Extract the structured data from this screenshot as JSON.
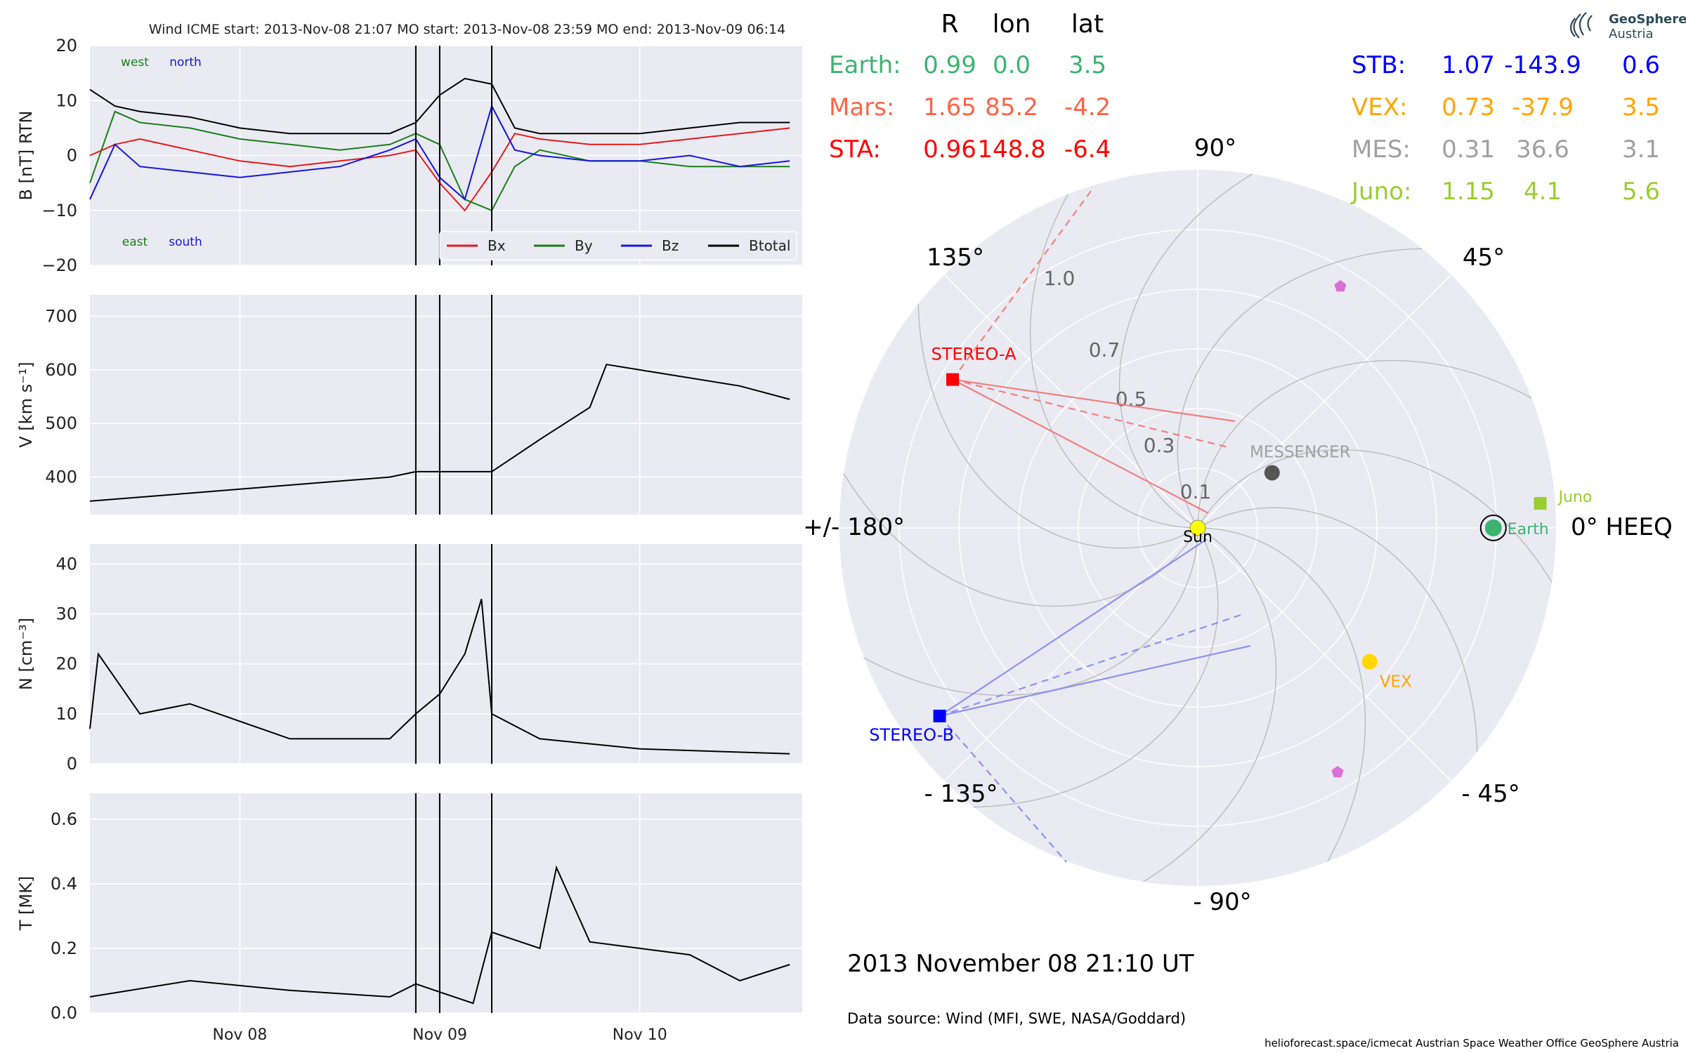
{
  "colors": {
    "panel_bg": "#eaeaf2",
    "grid": "#ffffff",
    "bx": "#e41a1c",
    "by": "#1a7f1a",
    "bz": "#1515e0",
    "btotal": "#000000",
    "earth": "#3cb371",
    "mars": "#ff6347",
    "sta": "#ff0000",
    "stb": "#0000ff",
    "vex": "#ffa500",
    "mes": "#a0a0a0",
    "juno": "#9acd32",
    "sun": "#ffff00",
    "messenger_dot": "#555555",
    "pentagon": "#da70d6"
  },
  "timeseries": {
    "header": "Wind    ICME start: 2013-Nov-08 21:07   MO start: 2013-Nov-08 23:59   MO end: 2013-Nov-09 06:14",
    "x_ticks": [
      "Nov 08",
      "Nov 09",
      "Nov 10"
    ],
    "markers": [
      "2013-Nov-08 21:07",
      "2013-Nov-08 23:59",
      "2013-Nov-09 06:14"
    ]
  },
  "chart_data": [
    {
      "type": "line",
      "ylabel": "B [nT] RTN",
      "ylim": [
        -20,
        20
      ],
      "y_ticks": [
        "20",
        "10",
        "0",
        "−10",
        "−20"
      ],
      "corner_labels": {
        "west": "west",
        "north": "north",
        "east": "east",
        "south": "south"
      },
      "legend": [
        "Bx",
        "By",
        "Bz",
        "Btotal"
      ],
      "x": [
        "2013-11-07 06:00",
        "2013-11-07 09:00",
        "2013-11-07 12:00",
        "2013-11-07 18:00",
        "2013-11-08 00:00",
        "2013-11-08 06:00",
        "2013-11-08 12:00",
        "2013-11-08 18:00",
        "2013-11-08 21:07",
        "2013-11-08 23:59",
        "2013-11-09 03:00",
        "2013-11-09 06:14",
        "2013-11-09 09:00",
        "2013-11-09 12:00",
        "2013-11-09 18:00",
        "2013-11-10 00:00",
        "2013-11-10 06:00",
        "2013-11-10 12:00",
        "2013-11-10 18:00"
      ],
      "series": [
        {
          "name": "Bx",
          "values": [
            0,
            2,
            3,
            1,
            -1,
            -2,
            -1,
            0,
            1,
            -5,
            -10,
            -3,
            4,
            3,
            2,
            2,
            3,
            4,
            5
          ]
        },
        {
          "name": "By",
          "values": [
            -5,
            8,
            6,
            5,
            3,
            2,
            1,
            2,
            4,
            2,
            -8,
            -10,
            -2,
            1,
            -1,
            -1,
            -2,
            -2,
            -2
          ]
        },
        {
          "name": "Bz",
          "values": [
            -8,
            2,
            -2,
            -3,
            -4,
            -3,
            -2,
            1,
            3,
            -4,
            -8,
            9,
            1,
            0,
            -1,
            -1,
            0,
            -2,
            -1
          ]
        },
        {
          "name": "Btotal",
          "values": [
            12,
            9,
            8,
            7,
            5,
            4,
            4,
            4,
            6,
            11,
            14,
            13,
            5,
            4,
            4,
            4,
            5,
            6,
            6
          ]
        }
      ]
    },
    {
      "type": "line",
      "ylabel": "V [km s⁻¹]",
      "ylim": [
        330,
        740
      ],
      "y_ticks": [
        "700",
        "600",
        "500",
        "400"
      ],
      "x": [
        "2013-11-07 06:00",
        "2013-11-07 18:00",
        "2013-11-08 06:00",
        "2013-11-08 18:00",
        "2013-11-08 21:07",
        "2013-11-09 06:14",
        "2013-11-09 12:00",
        "2013-11-09 18:00",
        "2013-11-09 20:00",
        "2013-11-10 00:00",
        "2013-11-10 12:00",
        "2013-11-10 18:00"
      ],
      "series": [
        {
          "name": "V",
          "values": [
            355,
            370,
            385,
            400,
            410,
            410,
            470,
            530,
            610,
            600,
            570,
            545
          ]
        }
      ]
    },
    {
      "type": "line",
      "ylabel": "N [cm⁻³]",
      "ylim": [
        0,
        44
      ],
      "y_ticks": [
        "40",
        "30",
        "20",
        "10",
        "0"
      ],
      "x": [
        "2013-11-07 06:00",
        "2013-11-07 07:00",
        "2013-11-07 12:00",
        "2013-11-07 18:00",
        "2013-11-08 06:00",
        "2013-11-08 18:00",
        "2013-11-08 21:07",
        "2013-11-09 00:00",
        "2013-11-09 03:00",
        "2013-11-09 05:00",
        "2013-11-09 06:14",
        "2013-11-09 12:00",
        "2013-11-10 00:00",
        "2013-11-10 18:00"
      ],
      "series": [
        {
          "name": "N",
          "values": [
            7,
            22,
            10,
            12,
            5,
            5,
            10,
            14,
            22,
            33,
            10,
            5,
            3,
            2
          ]
        }
      ]
    },
    {
      "type": "line",
      "ylabel": "T [MK]",
      "ylim": [
        0,
        0.68
      ],
      "y_ticks": [
        "0.6",
        "0.4",
        "0.2",
        "0.0"
      ],
      "x": [
        "2013-11-07 06:00",
        "2013-11-07 18:00",
        "2013-11-08 06:00",
        "2013-11-08 18:00",
        "2013-11-08 21:07",
        "2013-11-09 04:00",
        "2013-11-09 06:14",
        "2013-11-09 12:00",
        "2013-11-09 14:00",
        "2013-11-09 18:00",
        "2013-11-10 06:00",
        "2013-11-10 12:00",
        "2013-11-10 18:00"
      ],
      "series": [
        {
          "name": "T",
          "values": [
            0.05,
            0.1,
            0.07,
            0.05,
            0.09,
            0.03,
            0.25,
            0.2,
            0.45,
            0.22,
            0.18,
            0.1,
            0.15
          ]
        }
      ]
    }
  ],
  "positions": {
    "header": {
      "r": "R",
      "lon": "lon",
      "lat": "lat"
    },
    "left": [
      {
        "name": "Earth:",
        "r": "0.99",
        "lon": "0.0",
        "lat": "3.5",
        "color": "#3cb371"
      },
      {
        "name": "Mars:",
        "r": "1.65",
        "lon": "85.2",
        "lat": "-4.2",
        "color": "#ff6347"
      },
      {
        "name": "STA:",
        "r": "0.96",
        "lon": "148.8",
        "lat": "-6.4",
        "color": "#ff0000"
      }
    ],
    "right": [
      {
        "name": "STB:",
        "r": "1.07",
        "lon": "-143.9",
        "lat": "0.6",
        "color": "#0000ff"
      },
      {
        "name": "VEX:",
        "r": "0.73",
        "lon": "-37.9",
        "lat": "3.5",
        "color": "#ffa500"
      },
      {
        "name": "MES:",
        "r": "0.31",
        "lon": "36.6",
        "lat": "3.1",
        "color": "#a0a0a0"
      },
      {
        "name": "Juno:",
        "r": "1.15",
        "lon": "4.1",
        "lat": "5.6",
        "color": "#9acd32"
      }
    ]
  },
  "polar": {
    "angle_labels": {
      "a90": "90°",
      "a45": "45°",
      "a135": "135°",
      "a0": "0° HEEQ",
      "a180": "+/- 180°",
      "am45": "- 45°",
      "am135": "- 135°",
      "am90": "- 90°"
    },
    "radial_labels": [
      "1.0",
      "0.7",
      "0.5",
      "0.3",
      "0.1"
    ],
    "objects": {
      "sun": "Sun",
      "earth": "Earth",
      "juno": "Juno",
      "messenger": "MESSENGER",
      "vex": "VEX",
      "stereo_a": "STEREO-A",
      "stereo_b": "STEREO-B"
    },
    "bodies": [
      {
        "name": "Earth",
        "r": 0.99,
        "lon": 0.0
      },
      {
        "name": "Juno",
        "r": 1.15,
        "lon": 4.1
      },
      {
        "name": "MESSENGER",
        "r": 0.31,
        "lon": 36.6
      },
      {
        "name": "VEX",
        "r": 0.73,
        "lon": -37.9
      },
      {
        "name": "STEREO-A",
        "r": 0.96,
        "lon": 148.8
      },
      {
        "name": "STEREO-B",
        "r": 1.07,
        "lon": -143.9
      }
    ]
  },
  "footer": {
    "date": "2013 November 08  21:10 UT",
    "source": "Data source: Wind (MFI, SWE, NASA/Goddard)",
    "credits": "helioforecast.space/icmecat   Austrian Space Weather Office   GeoSphere Austria"
  },
  "logo": {
    "line1": "GeoSphere",
    "line2": "Austria"
  }
}
